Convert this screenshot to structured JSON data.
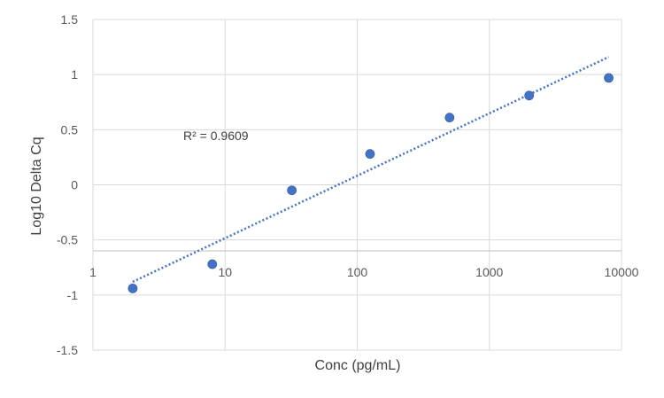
{
  "chart_data": {
    "type": "scatter",
    "xlabel": "Conc (pg/mL)",
    "ylabel": "Log10 Delta Cq",
    "x_scale": "log",
    "xlim": [
      1,
      10000
    ],
    "ylim": [
      -1.5,
      1.5
    ],
    "x_tick_labels": [
      "1",
      "10",
      "100",
      "1000",
      "10000"
    ],
    "y_tick_labels": [
      "1.5",
      "1",
      "0.5",
      "0",
      "-0.5",
      "-1",
      "-1.5"
    ],
    "grid": true,
    "series": [
      {
        "color": "#4472C4",
        "points": [
          {
            "x": 2,
            "y": -0.94
          },
          {
            "x": 8,
            "y": -0.72
          },
          {
            "x": 32,
            "y": -0.05
          },
          {
            "x": 125,
            "y": 0.28
          },
          {
            "x": 500,
            "y": 0.61
          },
          {
            "x": 2000,
            "y": 0.81
          },
          {
            "x": 8000,
            "y": 0.97
          }
        ]
      }
    ],
    "trendline": {
      "type": "logarithmic",
      "style": "dotted",
      "color": "#4472C4",
      "from": {
        "x": 2,
        "y": -0.88
      },
      "to": {
        "x": 8000,
        "y": 1.16
      }
    },
    "annotation": "R² = 0.9609"
  }
}
